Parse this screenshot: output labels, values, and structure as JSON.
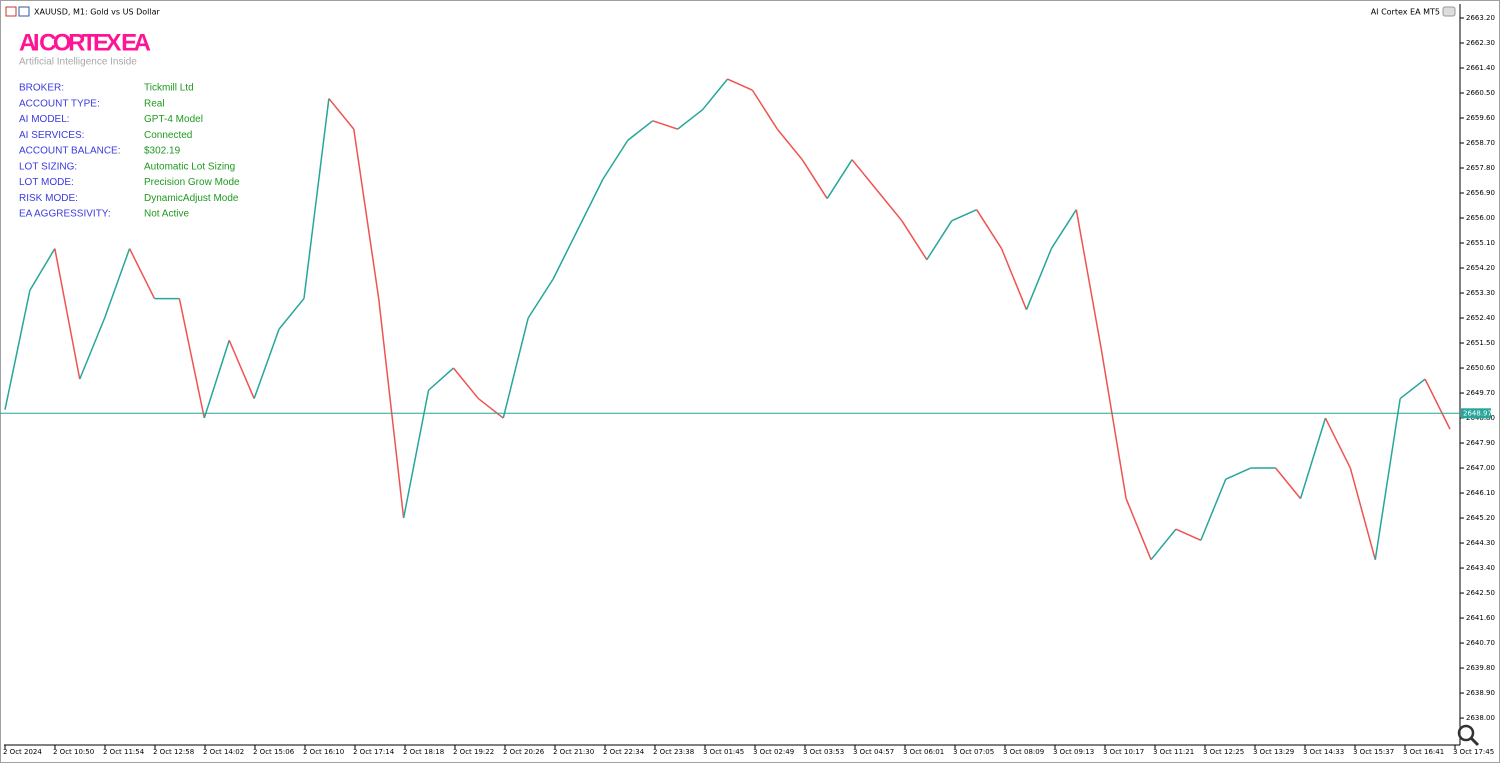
{
  "window": {
    "title": "XAUUSD, M1:  Gold vs US Dollar",
    "expert": "AI Cortex EA MT5"
  },
  "panel": {
    "title": "AI CORTEX EA",
    "subtitle": "Artificial Intelligence Inside",
    "rows": [
      [
        "BROKER:",
        "Tickmill Ltd"
      ],
      [
        "ACCOUNT TYPE:",
        "Real"
      ],
      [
        "AI MODEL:",
        "GPT-4 Model"
      ],
      [
        "AI SERVICES:",
        "Connected"
      ],
      [
        "ACCOUNT BALANCE:",
        "$302.19"
      ],
      [
        "LOT SIZING:",
        "Automatic Lot Sizing"
      ],
      [
        "LOT MODE:",
        "Precision Grow Mode"
      ],
      [
        "RISK MODE:",
        "DynamicAdjust Mode"
      ],
      [
        "EA AGGRESSIVITY:",
        "Not Active"
      ]
    ]
  },
  "chart_data": {
    "type": "line",
    "x_labels": [
      "2 Oct 2024",
      "2 Oct 10:50",
      "2 Oct 11:54",
      "2 Oct 12:58",
      "2 Oct 14:02",
      "2 Oct 15:06",
      "2 Oct 16:10",
      "2 Oct 17:14",
      "2 Oct 18:18",
      "2 Oct 19:22",
      "2 Oct 20:26",
      "2 Oct 21:30",
      "2 Oct 22:34",
      "2 Oct 23:38",
      "3 Oct 01:45",
      "3 Oct 02:49",
      "3 Oct 03:53",
      "3 Oct 04:57",
      "3 Oct 06:01",
      "3 Oct 07:05",
      "3 Oct 08:09",
      "3 Oct 09:13",
      "3 Oct 10:17",
      "3 Oct 11:21",
      "3 Oct 12:25",
      "3 Oct 13:29",
      "3 Oct 14:33",
      "3 Oct 15:37",
      "3 Oct 16:41",
      "3 Oct 17:45"
    ],
    "series": [
      {
        "up_color": "#26a69a",
        "down_color": "#ef5350",
        "values": [
          2649.1,
          2653.4,
          2654.9,
          2650.2,
          2652.4,
          2654.9,
          2653.1,
          2653.1,
          2648.8,
          2651.6,
          2649.5,
          2652.0,
          2653.1,
          2660.3,
          2659.2,
          2653.1,
          2645.2,
          2649.8,
          2650.6,
          2649.5,
          2648.8,
          2652.4,
          2653.8,
          2655.6,
          2657.4,
          2658.8,
          2659.5,
          2659.2,
          2659.9,
          2661.0,
          2660.6,
          2659.2,
          2658.1,
          2656.7,
          2658.1,
          2657.0,
          2655.9,
          2654.5,
          2655.9,
          2656.3,
          2654.9,
          2652.7,
          2654.9,
          2656.3,
          2651.3,
          2645.9,
          2643.7,
          2644.8,
          2644.4,
          2646.6,
          2647.0,
          2647.0,
          2645.9,
          2648.8,
          2647.0,
          2643.7,
          2649.5,
          2650.2,
          2648.4
        ]
      }
    ],
    "current_price": 2648.97,
    "current_price_color": "#26a69a",
    "ylim": [
      2637.03,
      2663.56
    ],
    "yticks": [
      {
        "value": 2663.2,
        "label": "2663.20"
      },
      {
        "value": 2662.3,
        "label": "2662.30"
      },
      {
        "value": 2661.4,
        "label": "2661.40"
      },
      {
        "value": 2660.5,
        "label": "2660.50"
      },
      {
        "value": 2659.6,
        "label": "2659.60"
      },
      {
        "value": 2658.7,
        "label": "2658.70"
      },
      {
        "value": 2657.8,
        "label": "2657.80"
      },
      {
        "value": 2656.9,
        "label": "2656.90"
      },
      {
        "value": 2656.0,
        "label": "2656.00"
      },
      {
        "value": 2655.1,
        "label": "2655.10"
      },
      {
        "value": 2654.2,
        "label": "2654.20"
      },
      {
        "value": 2653.3,
        "label": "2653.30"
      },
      {
        "value": 2652.4,
        "label": "2652.40"
      },
      {
        "value": 2651.5,
        "label": "2651.50"
      },
      {
        "value": 2650.6,
        "label": "2650.60"
      },
      {
        "value": 2649.7,
        "label": "2649.70"
      },
      {
        "value": 2648.8,
        "label": "2648.80"
      },
      {
        "value": 2647.9,
        "label": "2647.90"
      },
      {
        "value": 2647.0,
        "label": "2647.00"
      },
      {
        "value": 2646.1,
        "label": "2646.10"
      },
      {
        "value": 2645.2,
        "label": "2645.20"
      },
      {
        "value": 2644.3,
        "label": "2644.30"
      },
      {
        "value": 2643.4,
        "label": "2643.40"
      },
      {
        "value": 2642.5,
        "label": "2642.50"
      },
      {
        "value": 2641.6,
        "label": "2641.60"
      },
      {
        "value": 2640.7,
        "label": "2640.70"
      },
      {
        "value": 2639.8,
        "label": "2639.80"
      },
      {
        "value": 2638.9,
        "label": "2638.90"
      },
      {
        "value": 2638.0,
        "label": "2638.00"
      }
    ]
  }
}
